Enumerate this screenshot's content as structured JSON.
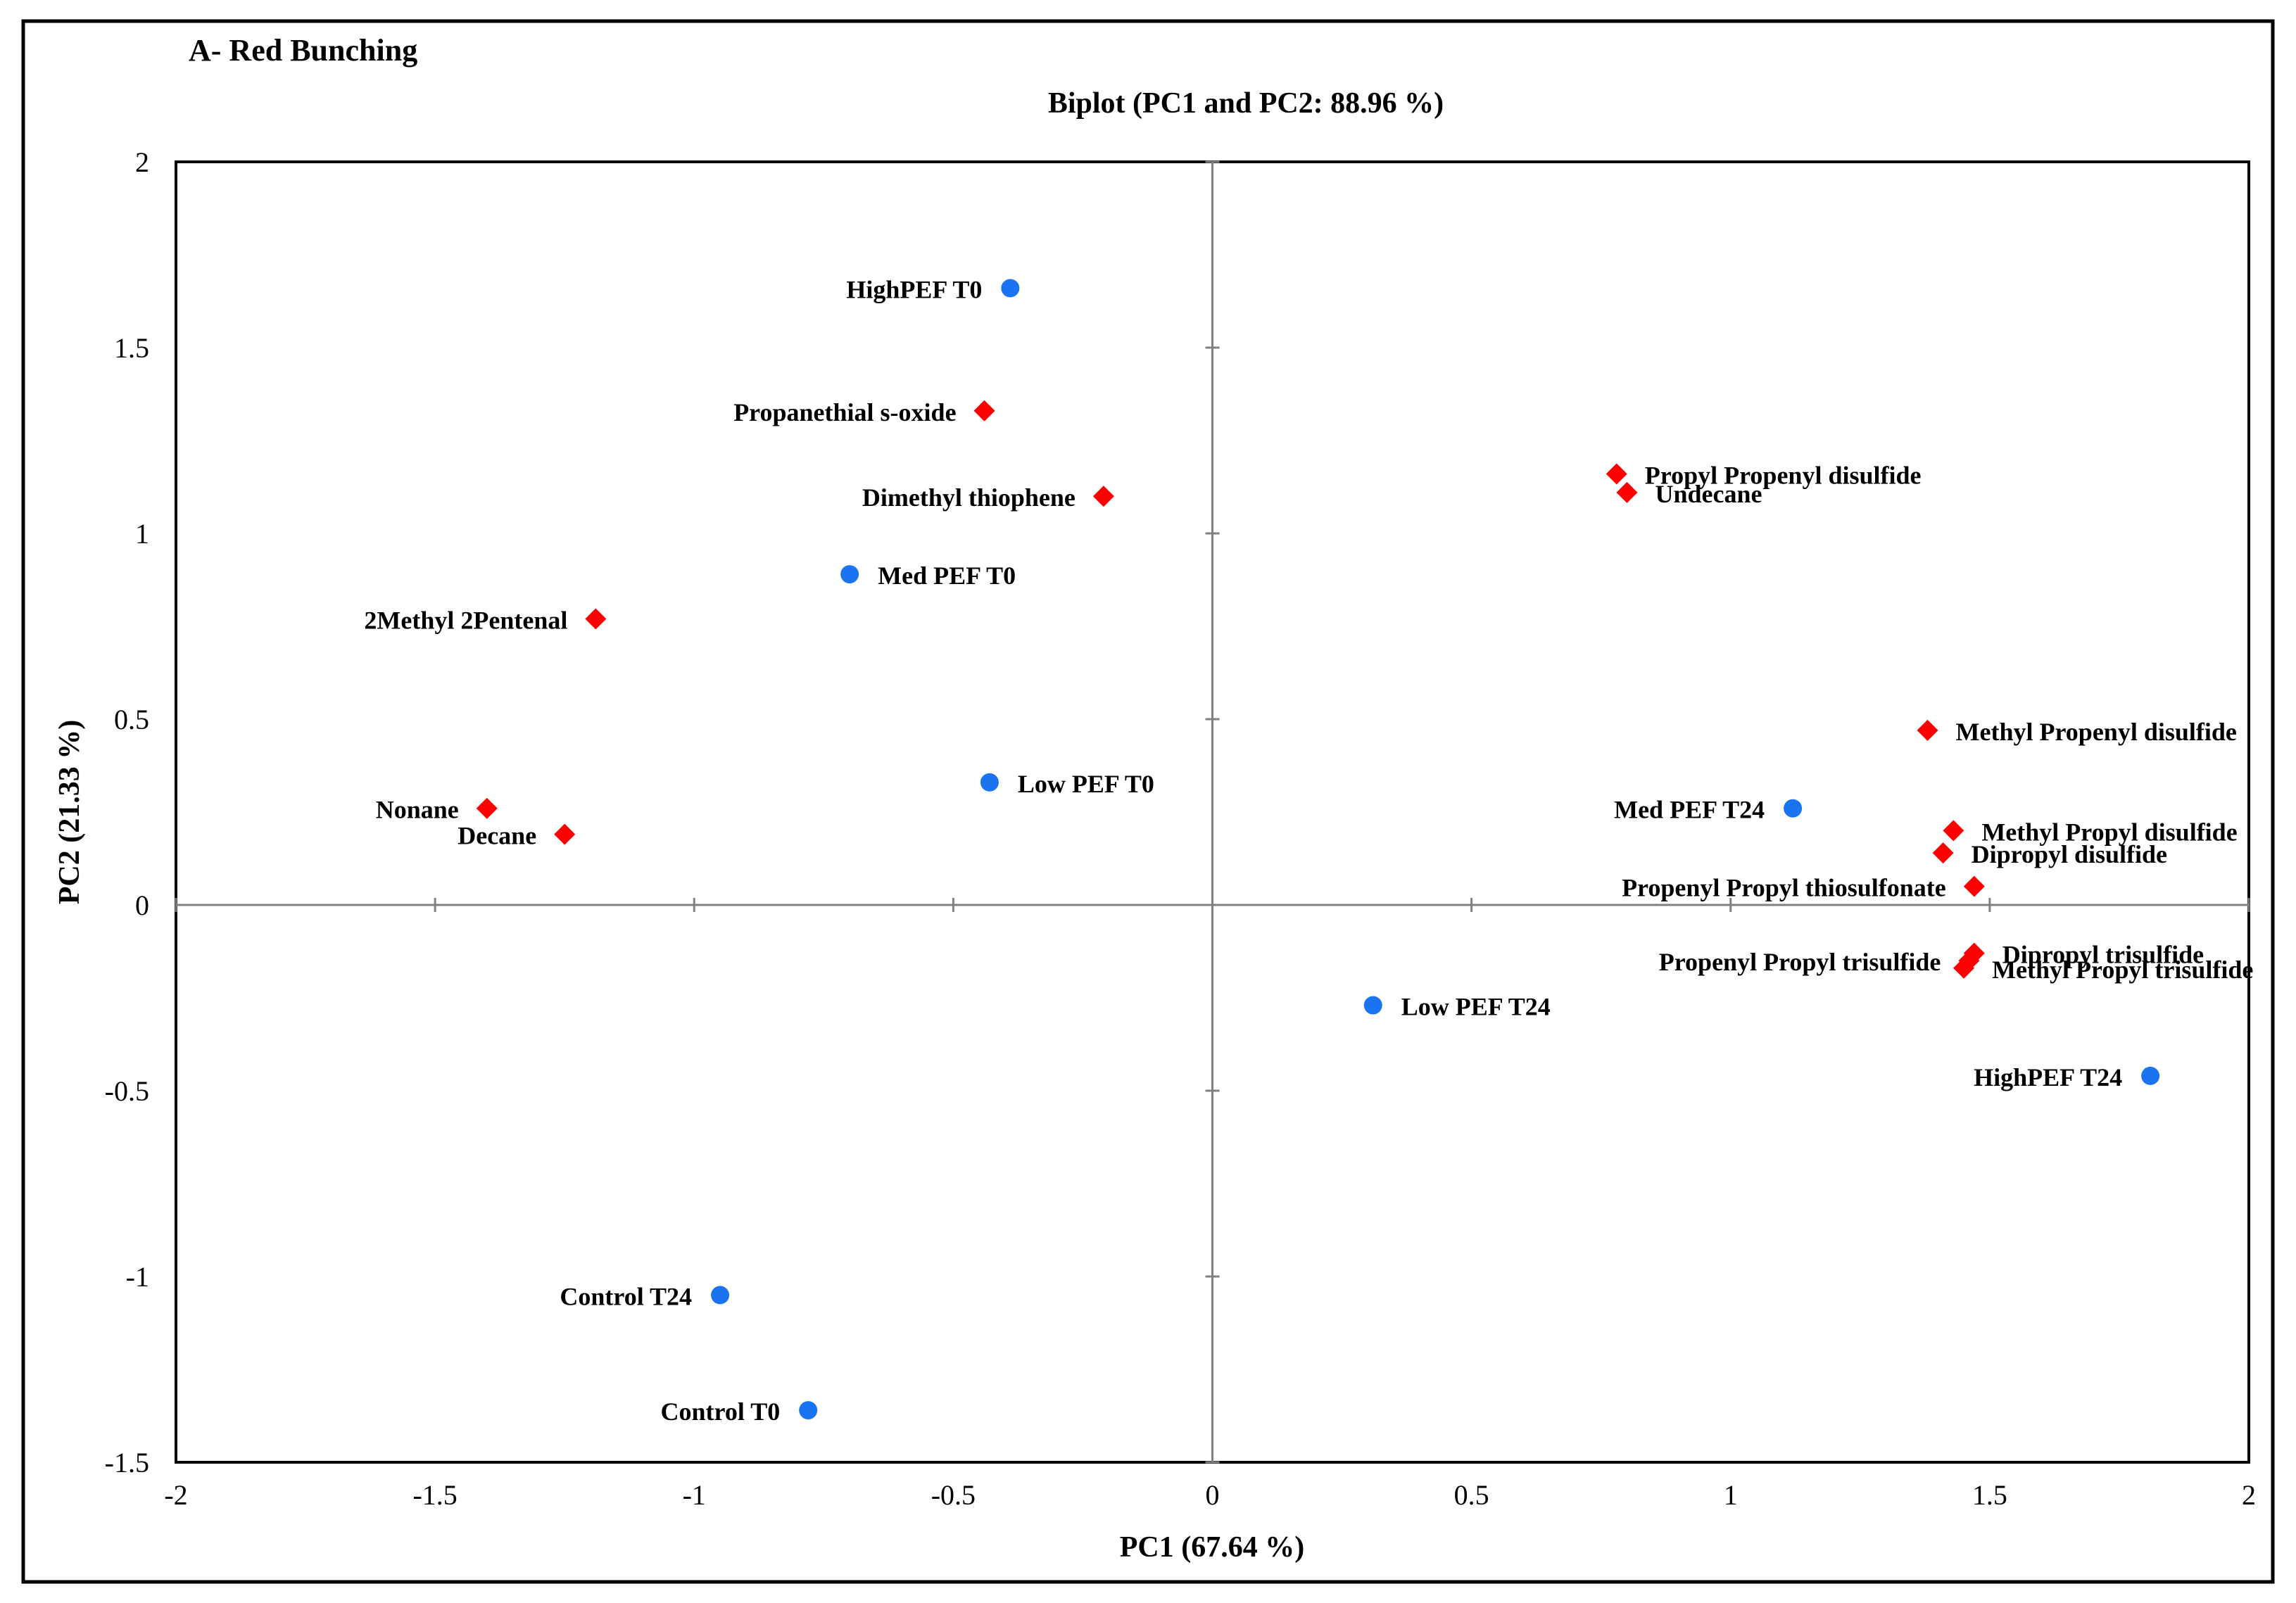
{
  "chart_data": {
    "type": "scatter",
    "panel_label": "A- Red Bunching",
    "title": "Biplot (PC1 and PC2: 88.96 %)",
    "xlabel": "PC1 (67.64 %)",
    "ylabel": "PC2 (21.33 %)",
    "xlim": [
      -2,
      2
    ],
    "ylim": [
      -1.5,
      2
    ],
    "x_ticks": [
      -2,
      -1.5,
      -1,
      -0.5,
      0,
      0.5,
      1,
      1.5,
      2
    ],
    "x_tick_labels": [
      "-2",
      "-1.5",
      "-1",
      "-0.5",
      "0",
      "0.5",
      "1",
      "1.5",
      "2"
    ],
    "y_ticks": [
      -1.5,
      -1,
      -0.5,
      0,
      0.5,
      1,
      1.5,
      2
    ],
    "y_tick_labels": [
      "-1.5",
      "-1",
      "-0.5",
      "0",
      "0.5",
      "1",
      "1.5",
      "2"
    ],
    "grid": false,
    "series": [
      {
        "name": "Observations",
        "marker": "circle",
        "color": "#1a73f0",
        "points": [
          {
            "label": "HighPEF T0",
            "x": -0.39,
            "y": 1.66,
            "label_side": "left"
          },
          {
            "label": "Med PEF T0",
            "x": -0.7,
            "y": 0.89,
            "label_side": "right"
          },
          {
            "label": "Low PEF T0",
            "x": -0.43,
            "y": 0.33,
            "label_side": "right"
          },
          {
            "label": "Control T24",
            "x": -0.95,
            "y": -1.05,
            "label_side": "left"
          },
          {
            "label": "Control T0",
            "x": -0.78,
            "y": -1.36,
            "label_side": "left"
          },
          {
            "label": "Low PEF T24",
            "x": 0.31,
            "y": -0.27,
            "label_side": "right"
          },
          {
            "label": "Med PEF T24",
            "x": 1.12,
            "y": 0.26,
            "label_side": "left"
          },
          {
            "label": "HighPEF T24",
            "x": 1.81,
            "y": -0.46,
            "label_side": "left"
          }
        ]
      },
      {
        "name": "Variables",
        "marker": "diamond",
        "color": "#ff0000",
        "points": [
          {
            "label": "Propanethial s-oxide",
            "x": -0.44,
            "y": 1.33,
            "label_side": "left"
          },
          {
            "label": "Dimethyl thiophene",
            "x": -0.21,
            "y": 1.1,
            "label_side": "left"
          },
          {
            "label": "2Methyl 2Pentenal",
            "x": -1.19,
            "y": 0.77,
            "label_side": "left"
          },
          {
            "label": "Nonane",
            "x": -1.4,
            "y": 0.26,
            "label_side": "left"
          },
          {
            "label": "Decane",
            "x": -1.25,
            "y": 0.19,
            "label_side": "left"
          },
          {
            "label": "Propyl Propenyl disulfide",
            "x": 0.78,
            "y": 1.16,
            "label_side": "right"
          },
          {
            "label": "Undecane",
            "x": 0.8,
            "y": 1.11,
            "label_side": "right"
          },
          {
            "label": "Methyl Propenyl disulfide",
            "x": 1.38,
            "y": 0.47,
            "label_side": "right"
          },
          {
            "label": "Methyl Propyl disulfide",
            "x": 1.43,
            "y": 0.2,
            "label_side": "right"
          },
          {
            "label": "Dipropyl disulfide",
            "x": 1.41,
            "y": 0.14,
            "label_side": "right"
          },
          {
            "label": "Propenyl Propyl thiosulfonate",
            "x": 1.47,
            "y": 0.05,
            "label_side": "left"
          },
          {
            "label": "Dipropyl trisulfide",
            "x": 1.47,
            "y": -0.13,
            "label_side": "right"
          },
          {
            "label": "Propenyl Propyl trisulfide",
            "x": 1.46,
            "y": -0.15,
            "label_side": "left"
          },
          {
            "label": "Methyl Propyl trisulfide",
            "x": 1.45,
            "y": -0.17,
            "label_side": "right"
          }
        ]
      }
    ]
  }
}
